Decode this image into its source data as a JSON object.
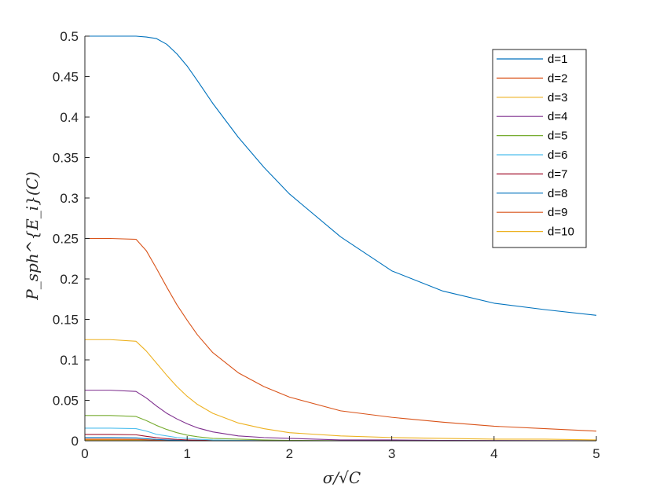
{
  "chart_data": {
    "type": "line",
    "xlabel": "σ/√C",
    "ylabel": "P_sph^{E_i}(C)",
    "xlim": [
      0,
      5
    ],
    "ylim": [
      0,
      0.5
    ],
    "x_ticks": [
      "0",
      "1",
      "2",
      "3",
      "4",
      "5"
    ],
    "y_ticks": [
      "0",
      "0.05",
      "0.1",
      "0.15",
      "0.2",
      "0.25",
      "0.3",
      "0.35",
      "0.4",
      "0.45",
      "0.5"
    ],
    "grid": false,
    "legend_position": "top-right",
    "x": [
      0,
      0.25,
      0.5,
      0.6,
      0.7,
      0.8,
      0.9,
      1.0,
      1.1,
      1.25,
      1.5,
      1.75,
      2.0,
      2.5,
      3.0,
      3.5,
      4.0,
      4.5,
      5.0
    ],
    "series": [
      {
        "name": "d=1",
        "color": "#0072BD",
        "values": [
          0.5,
          0.5,
          0.5,
          0.499,
          0.497,
          0.49,
          0.478,
          0.463,
          0.445,
          0.417,
          0.375,
          0.338,
          0.305,
          0.252,
          0.21,
          0.185,
          0.17,
          0.162,
          0.155
        ]
      },
      {
        "name": "d=2",
        "color": "#D95319",
        "values": [
          0.25,
          0.25,
          0.249,
          0.235,
          0.213,
          0.19,
          0.168,
          0.149,
          0.131,
          0.109,
          0.084,
          0.067,
          0.054,
          0.037,
          0.029,
          0.023,
          0.018,
          0.015,
          0.012
        ]
      },
      {
        "name": "d=3",
        "color": "#EDB120",
        "values": [
          0.125,
          0.125,
          0.123,
          0.111,
          0.096,
          0.081,
          0.067,
          0.055,
          0.045,
          0.034,
          0.022,
          0.015,
          0.01,
          0.006,
          0.004,
          0.003,
          0.002,
          0.002,
          0.001
        ]
      },
      {
        "name": "d=4",
        "color": "#7E2F8E",
        "values": [
          0.0625,
          0.0625,
          0.061,
          0.053,
          0.043,
          0.034,
          0.027,
          0.021,
          0.016,
          0.011,
          0.006,
          0.004,
          0.003,
          0.001,
          0.001,
          0.0005,
          0.0003,
          0.0002,
          0.0001
        ]
      },
      {
        "name": "d=5",
        "color": "#77AC30",
        "values": [
          0.03125,
          0.03125,
          0.03,
          0.025,
          0.019,
          0.014,
          0.01,
          0.007,
          0.005,
          0.003,
          0.002,
          0.001,
          0.0005,
          0.0002,
          0.0001,
          0,
          0,
          0,
          0
        ]
      },
      {
        "name": "d=6",
        "color": "#4DBEEE",
        "values": [
          0.0156,
          0.0156,
          0.015,
          0.012,
          0.008,
          0.006,
          0.004,
          0.003,
          0.002,
          0.001,
          0.0005,
          0.0002,
          0.0001,
          0,
          0,
          0,
          0,
          0,
          0
        ]
      },
      {
        "name": "d=7",
        "color": "#A2142F",
        "values": [
          0.0078,
          0.0078,
          0.0074,
          0.0055,
          0.0038,
          0.0026,
          0.0017,
          0.0011,
          0.0007,
          0.0004,
          0.0002,
          0.0001,
          0,
          0,
          0,
          0,
          0,
          0,
          0
        ]
      },
      {
        "name": "d=8",
        "color": "#0072BD",
        "values": [
          0.0039,
          0.0039,
          0.0036,
          0.0026,
          0.0017,
          0.0011,
          0.0007,
          0.0004,
          0.0003,
          0.0001,
          0.0001,
          0,
          0,
          0,
          0,
          0,
          0,
          0,
          0
        ]
      },
      {
        "name": "d=9",
        "color": "#D95319",
        "values": [
          0.002,
          0.002,
          0.0018,
          0.0013,
          0.0008,
          0.0005,
          0.0003,
          0.0002,
          0.0001,
          0,
          0,
          0,
          0,
          0,
          0,
          0,
          0,
          0,
          0
        ]
      },
      {
        "name": "d=10",
        "color": "#EDB120",
        "values": [
          0.001,
          0.001,
          0.0009,
          0.0006,
          0.0004,
          0.0002,
          0.0001,
          0.0001,
          0,
          0,
          0,
          0,
          0,
          0,
          0,
          0,
          0,
          0,
          0
        ]
      }
    ]
  }
}
